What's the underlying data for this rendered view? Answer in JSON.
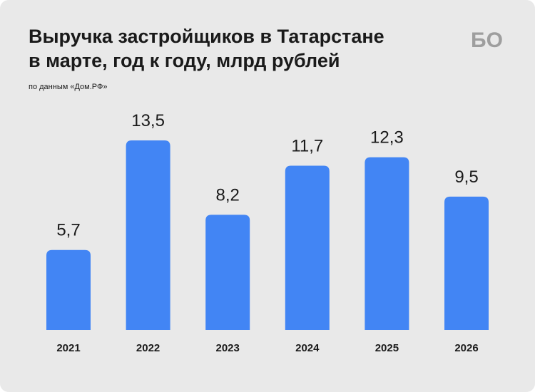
{
  "header": {
    "title_line1": "Выручка застройщиков в Татарстане",
    "title_line2": "в марте, год к году, млрд рублей",
    "source": "по данным «Дом.РФ»",
    "logo_text": "БО"
  },
  "colors": {
    "background": "#e9e9e9",
    "bar": "#4285f4",
    "text": "#1a1a1a",
    "logo": "#9e9e9e"
  },
  "chart_data": {
    "type": "bar",
    "title": "Выручка застройщиков в Татарстане в марте, год к году, млрд рублей",
    "categories": [
      "2021",
      "2022",
      "2023",
      "2024",
      "2025",
      "2026"
    ],
    "values": [
      5.7,
      13.5,
      8.2,
      11.7,
      12.3,
      9.5
    ],
    "value_labels": [
      "5,7",
      "13,5",
      "8,2",
      "11,7",
      "12,3",
      "9,5"
    ],
    "xlabel": "",
    "ylabel": "",
    "ylim": [
      0,
      13.5
    ],
    "grid": false,
    "legend": "none"
  }
}
